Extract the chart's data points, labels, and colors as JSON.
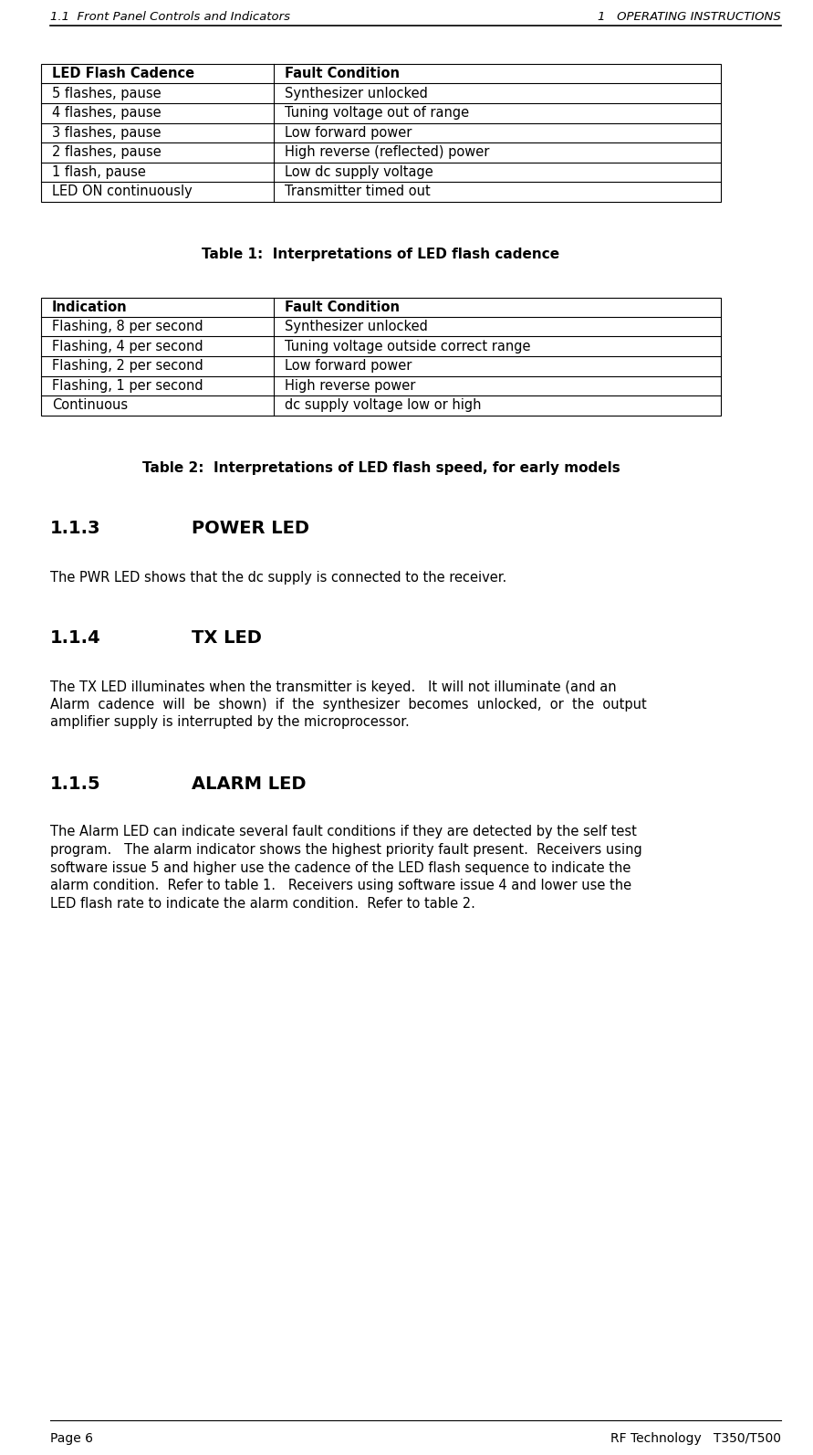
{
  "header_left": "1.1  Front Panel Controls and Indicators",
  "header_right": "1   OPERATING INSTRUCTIONS",
  "footer_left": "Page 6",
  "footer_right": "RF Technology   T350/T500",
  "table1_headers": [
    "LED Flash Cadence",
    "Fault Condition"
  ],
  "table1_rows": [
    [
      "5 flashes, pause",
      "Synthesizer unlocked"
    ],
    [
      "4 flashes, pause",
      "Tuning voltage out of range"
    ],
    [
      "3 flashes, pause",
      "Low forward power"
    ],
    [
      "2 flashes, pause",
      "High reverse (reflected) power"
    ],
    [
      "1 flash, pause",
      "Low dc supply voltage"
    ],
    [
      "LED ON continuously",
      "Transmitter timed out"
    ]
  ],
  "table1_caption": "Table 1:  Interpretations of LED flash cadence",
  "table2_headers": [
    "Indication",
    "Fault Condition"
  ],
  "table2_rows": [
    [
      "Flashing, 8 per second",
      "Synthesizer unlocked"
    ],
    [
      "Flashing, 4 per second",
      "Tuning voltage outside correct range"
    ],
    [
      "Flashing, 2 per second",
      "Low forward power"
    ],
    [
      "Flashing, 1 per second",
      "High reverse power"
    ],
    [
      "Continuous",
      "dc supply voltage low or high"
    ]
  ],
  "table2_caption": "Table 2:  Interpretations of LED flash speed, for early models",
  "section113_num": "1.1.3",
  "section113_name": "POWER LED",
  "section113_body": "The PWR LED shows that the dc supply is connected to the receiver.",
  "section114_num": "1.1.4",
  "section114_name": "TX LED",
  "section114_line1": "The TX LED illuminates when the transmitter is keyed.   It will not illuminate (and an",
  "section114_line2": "Alarm  cadence  will  be  shown)  if  the  synthesizer  becomes  unlocked,  or  the  output",
  "section114_line3": "amplifier supply is interrupted by the microprocessor.",
  "section115_num": "1.1.5",
  "section115_name": "ALARM LED",
  "section115_line1": "The Alarm LED can indicate several fault conditions if they are detected by the self test",
  "section115_line2": "program.   The alarm indicator shows the highest priority fault present.  Receivers using",
  "section115_line3": "software issue 5 and higher use the cadence of the LED flash sequence to indicate the",
  "section115_line4": "alarm condition.  Refer to table 1.   Receivers using software issue 4 and lower use the",
  "section115_line5": "LED flash rate to indicate the alarm condition.  Refer to table 2.",
  "bg_color": "#ffffff",
  "text_color": "#000000",
  "table_border_color": "#000000"
}
